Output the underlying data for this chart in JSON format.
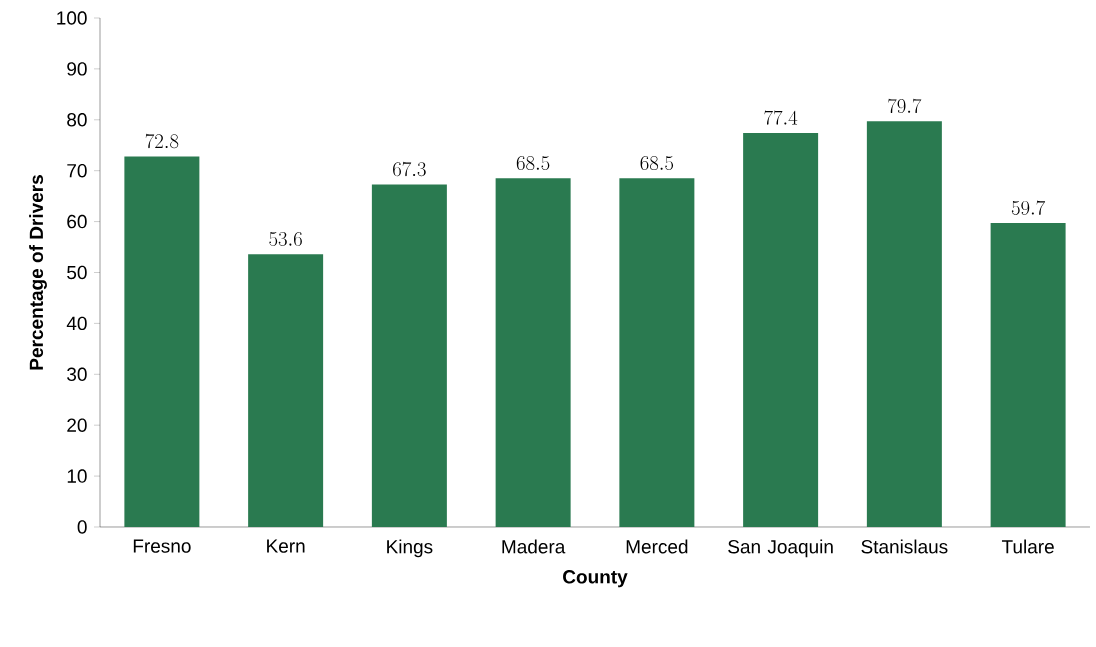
{
  "chart_data": {
    "type": "bar",
    "xlabel": "County",
    "ylabel": "Percentage of Drivers",
    "categories": [
      "Fresno",
      "Kern",
      "Kings",
      "Madera",
      "Merced",
      "San Joaquin",
      "Stanislaus",
      "Tulare"
    ],
    "values": [
      72.8,
      53.6,
      67.3,
      68.5,
      68.5,
      77.4,
      79.7,
      59.7
    ],
    "color": "#2a7a50",
    "ylim": [
      0,
      100
    ],
    "yticks": [
      0,
      10,
      20,
      30,
      40,
      50,
      60,
      70,
      80,
      90,
      100
    ],
    "data_labels": true
  }
}
